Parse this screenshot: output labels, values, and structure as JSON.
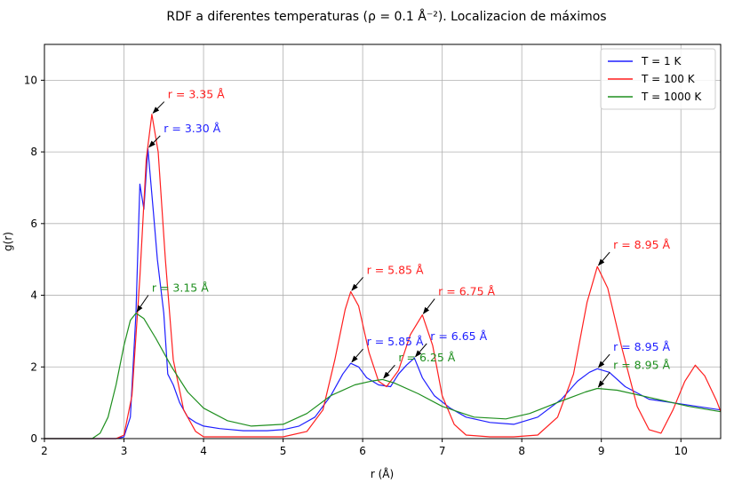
{
  "chart_data": {
    "type": "line",
    "title": "RDF a diferentes temperaturas (ρ = 0.1 Å⁻²). Localizacion de máximos",
    "xlabel": "r (Å)",
    "ylabel": "g(r)",
    "xlim": [
      2,
      10.5
    ],
    "ylim": [
      0,
      11
    ],
    "xticks": [
      2,
      3,
      4,
      5,
      6,
      7,
      8,
      9,
      10
    ],
    "yticks": [
      0,
      2,
      4,
      6,
      8,
      10
    ],
    "grid": true,
    "legend_position": "top-right",
    "colors": {
      "T1": "#1f1fff",
      "T100": "#ff1f1f",
      "T1000": "#1f8f1f"
    },
    "series": [
      {
        "name": "T = 1 K",
        "color": "#1f1fff",
        "points": [
          [
            2,
            0
          ],
          [
            2.9,
            0
          ],
          [
            3.0,
            0.05
          ],
          [
            3.08,
            0.6
          ],
          [
            3.15,
            3.5
          ],
          [
            3.2,
            7.1
          ],
          [
            3.25,
            6.4
          ],
          [
            3.3,
            8.1
          ],
          [
            3.37,
            6.3
          ],
          [
            3.42,
            5.0
          ],
          [
            3.5,
            3.5
          ],
          [
            3.55,
            1.8
          ],
          [
            3.62,
            1.5
          ],
          [
            3.7,
            1.0
          ],
          [
            3.8,
            0.6
          ],
          [
            3.9,
            0.45
          ],
          [
            4.0,
            0.35
          ],
          [
            4.2,
            0.28
          ],
          [
            4.5,
            0.22
          ],
          [
            4.8,
            0.22
          ],
          [
            5.0,
            0.25
          ],
          [
            5.2,
            0.35
          ],
          [
            5.4,
            0.6
          ],
          [
            5.6,
            1.2
          ],
          [
            5.75,
            1.8
          ],
          [
            5.85,
            2.1
          ],
          [
            5.95,
            2.0
          ],
          [
            6.05,
            1.7
          ],
          [
            6.2,
            1.5
          ],
          [
            6.35,
            1.45
          ],
          [
            6.45,
            1.8
          ],
          [
            6.55,
            2.05
          ],
          [
            6.65,
            2.25
          ],
          [
            6.75,
            1.7
          ],
          [
            6.9,
            1.2
          ],
          [
            7.1,
            0.85
          ],
          [
            7.3,
            0.6
          ],
          [
            7.6,
            0.45
          ],
          [
            7.9,
            0.4
          ],
          [
            8.2,
            0.6
          ],
          [
            8.5,
            1.1
          ],
          [
            8.7,
            1.6
          ],
          [
            8.85,
            1.85
          ],
          [
            8.95,
            1.95
          ],
          [
            9.1,
            1.85
          ],
          [
            9.3,
            1.45
          ],
          [
            9.6,
            1.1
          ],
          [
            9.9,
            1.0
          ],
          [
            10.2,
            0.9
          ],
          [
            10.5,
            0.8
          ]
        ]
      },
      {
        "name": "T = 100 K",
        "color": "#ff1f1f",
        "points": [
          [
            2,
            0
          ],
          [
            2.9,
            0
          ],
          [
            3.0,
            0.1
          ],
          [
            3.1,
            1.2
          ],
          [
            3.2,
            4.5
          ],
          [
            3.28,
            7.8
          ],
          [
            3.35,
            9.05
          ],
          [
            3.43,
            8.0
          ],
          [
            3.52,
            5.0
          ],
          [
            3.62,
            2.2
          ],
          [
            3.75,
            0.8
          ],
          [
            3.9,
            0.2
          ],
          [
            4.0,
            0.05
          ],
          [
            4.5,
            0.05
          ],
          [
            5.0,
            0.05
          ],
          [
            5.3,
            0.2
          ],
          [
            5.5,
            0.8
          ],
          [
            5.65,
            2.2
          ],
          [
            5.78,
            3.6
          ],
          [
            5.85,
            4.1
          ],
          [
            5.95,
            3.7
          ],
          [
            6.08,
            2.4
          ],
          [
            6.2,
            1.6
          ],
          [
            6.3,
            1.45
          ],
          [
            6.45,
            1.9
          ],
          [
            6.6,
            2.9
          ],
          [
            6.75,
            3.45
          ],
          [
            6.88,
            2.6
          ],
          [
            7.0,
            1.2
          ],
          [
            7.15,
            0.4
          ],
          [
            7.3,
            0.1
          ],
          [
            7.6,
            0.05
          ],
          [
            7.9,
            0.05
          ],
          [
            8.2,
            0.1
          ],
          [
            8.45,
            0.6
          ],
          [
            8.65,
            1.8
          ],
          [
            8.82,
            3.8
          ],
          [
            8.95,
            4.8
          ],
          [
            9.08,
            4.2
          ],
          [
            9.25,
            2.6
          ],
          [
            9.45,
            0.9
          ],
          [
            9.6,
            0.25
          ],
          [
            9.75,
            0.15
          ],
          [
            9.9,
            0.8
          ],
          [
            10.05,
            1.6
          ],
          [
            10.18,
            2.05
          ],
          [
            10.3,
            1.75
          ],
          [
            10.45,
            1.05
          ],
          [
            10.5,
            0.75
          ]
        ]
      },
      {
        "name": "T = 1000 K",
        "color": "#1f8f1f",
        "points": [
          [
            2,
            0
          ],
          [
            2.6,
            0
          ],
          [
            2.7,
            0.15
          ],
          [
            2.8,
            0.6
          ],
          [
            2.9,
            1.5
          ],
          [
            3.0,
            2.6
          ],
          [
            3.08,
            3.3
          ],
          [
            3.15,
            3.5
          ],
          [
            3.25,
            3.35
          ],
          [
            3.4,
            2.8
          ],
          [
            3.6,
            2.0
          ],
          [
            3.8,
            1.3
          ],
          [
            4.0,
            0.85
          ],
          [
            4.3,
            0.5
          ],
          [
            4.6,
            0.35
          ],
          [
            5.0,
            0.4
          ],
          [
            5.3,
            0.7
          ],
          [
            5.6,
            1.2
          ],
          [
            5.9,
            1.5
          ],
          [
            6.1,
            1.6
          ],
          [
            6.25,
            1.65
          ],
          [
            6.4,
            1.55
          ],
          [
            6.7,
            1.25
          ],
          [
            7.0,
            0.9
          ],
          [
            7.4,
            0.6
          ],
          [
            7.8,
            0.55
          ],
          [
            8.1,
            0.7
          ],
          [
            8.5,
            1.05
          ],
          [
            8.8,
            1.3
          ],
          [
            8.95,
            1.4
          ],
          [
            9.2,
            1.35
          ],
          [
            9.5,
            1.2
          ],
          [
            9.8,
            1.05
          ],
          [
            10.1,
            0.9
          ],
          [
            10.5,
            0.75
          ]
        ]
      }
    ],
    "annotations": [
      {
        "text": "r = 3.35 Å",
        "color": "#ff1f1f",
        "x": 3.35,
        "y": 9.05,
        "text_x": 3.55,
        "text_y": 9.5
      },
      {
        "text": "r = 3.30 Å",
        "color": "#1f1fff",
        "x": 3.3,
        "y": 8.1,
        "text_x": 3.5,
        "text_y": 8.55
      },
      {
        "text": "r = 3.15 Å",
        "color": "#1f8f1f",
        "x": 3.15,
        "y": 3.5,
        "text_x": 3.35,
        "text_y": 4.1
      },
      {
        "text": "r = 5.85 Å",
        "color": "#ff1f1f",
        "x": 5.85,
        "y": 4.1,
        "text_x": 6.05,
        "text_y": 4.6
      },
      {
        "text": "r = 6.75 Å",
        "color": "#ff1f1f",
        "x": 6.75,
        "y": 3.45,
        "text_x": 6.95,
        "text_y": 4.0
      },
      {
        "text": "r = 5.85 Å",
        "color": "#1f1fff",
        "x": 5.85,
        "y": 2.1,
        "text_x": 6.05,
        "text_y": 2.6
      },
      {
        "text": "r = 6.65 Å",
        "color": "#1f1fff",
        "x": 6.65,
        "y": 2.25,
        "text_x": 6.85,
        "text_y": 2.75
      },
      {
        "text": "r = 6.25 Å",
        "color": "#1f8f1f",
        "x": 6.25,
        "y": 1.65,
        "text_x": 6.45,
        "text_y": 2.15
      },
      {
        "text": "r = 8.95 Å",
        "color": "#ff1f1f",
        "x": 8.95,
        "y": 4.8,
        "text_x": 9.15,
        "text_y": 5.3
      },
      {
        "text": "r = 8.95 Å",
        "color": "#1f1fff",
        "x": 8.95,
        "y": 1.95,
        "text_x": 9.15,
        "text_y": 2.45
      },
      {
        "text": "r = 8.95 Å",
        "color": "#1f8f1f",
        "x": 8.95,
        "y": 1.4,
        "text_x": 9.15,
        "text_y": 1.95
      }
    ]
  }
}
